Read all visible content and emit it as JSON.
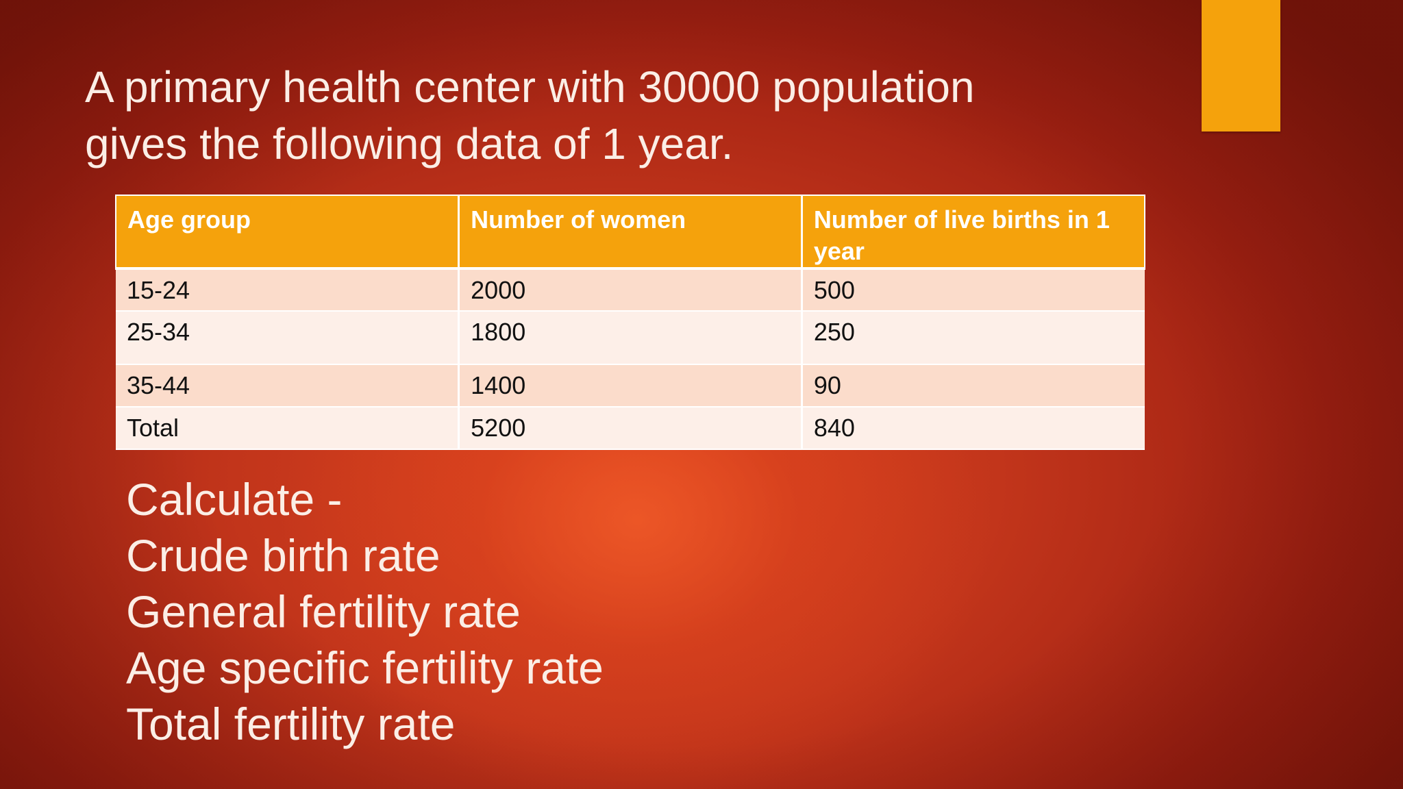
{
  "title": {
    "line1": "A primary health center with 30000 population",
    "line2": "gives the following data of 1 year."
  },
  "table": {
    "headers": [
      "Age group",
      "Number of women",
      "Number of live births in 1 year"
    ],
    "rows": [
      [
        "15-24",
        "2000",
        "500"
      ],
      [
        "25-34",
        "1800",
        "250"
      ],
      [
        "35-44",
        "1400",
        "90"
      ],
      [
        "Total",
        "5200",
        "840"
      ]
    ]
  },
  "tasks": [
    "Calculate -",
    "Crude birth rate",
    "General fertility rate",
    "Age specific fertility rate",
    "Total fertility rate"
  ],
  "colors": {
    "accent": "#f5a20c",
    "band_row": "#fbdccb",
    "plain_row": "#fdefe8",
    "background": "#c2351b"
  }
}
